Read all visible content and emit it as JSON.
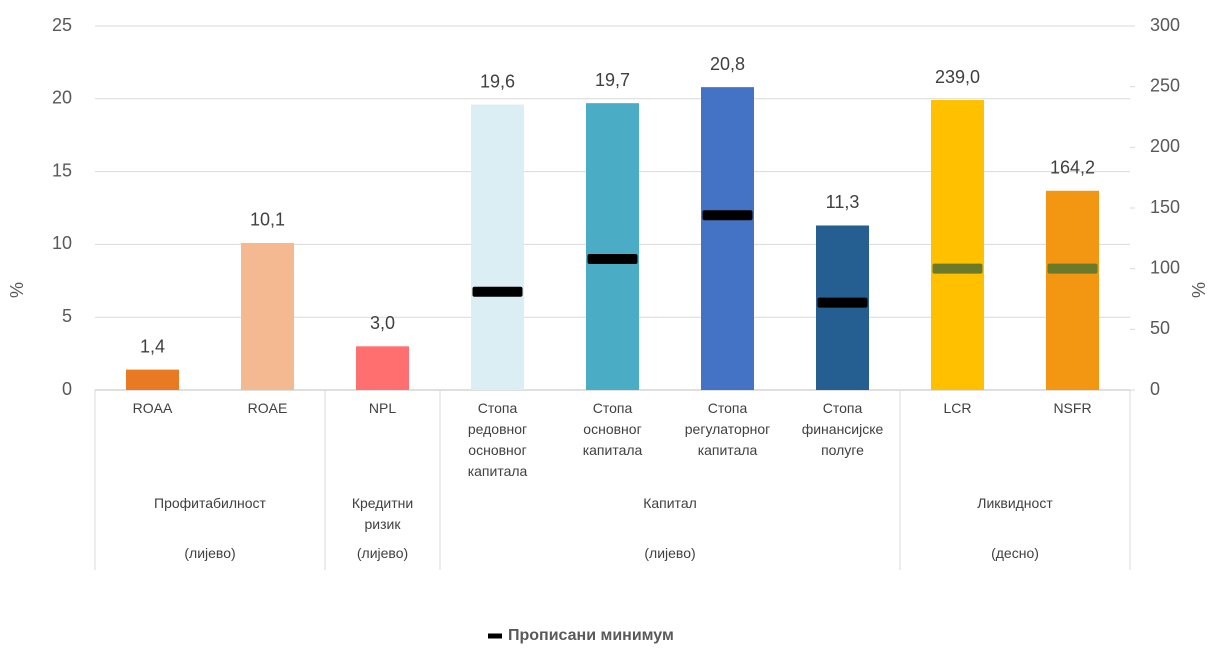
{
  "chart_data": {
    "type": "bar",
    "groups": [
      {
        "label": "Профитабилност",
        "note": "(лијево)",
        "categories": [
          "ROAA",
          "ROAE"
        ]
      },
      {
        "label": "Кредитни ризик",
        "note": "(лијево)",
        "categories": [
          "NPL"
        ]
      },
      {
        "label": "Капитал",
        "note": "(лијево)",
        "categories": [
          "Стопа редовног основног капитала",
          "Стопа основног капитала",
          "Стопа регулаторног капитала",
          "Стопа финансијске полуге"
        ]
      },
      {
        "label": "Ликвидност",
        "note": "(десно)",
        "categories": [
          "LCR",
          "NSFR"
        ]
      }
    ],
    "bars": {
      "values": [
        1.4,
        10.1,
        3.0,
        19.6,
        19.7,
        20.8,
        11.3,
        239.0,
        164.2
      ],
      "value_labels": [
        "1,4",
        "10,1",
        "3,0",
        "19,6",
        "19,7",
        "20,8",
        "11,3",
        "239,0",
        "164,2"
      ],
      "colors": [
        "#e97a23",
        "#f4b991",
        "#ff6f6f",
        "#daeef3",
        "#4bacc6",
        "#4472c4",
        "#255e91",
        "#ffc000",
        "#f39712"
      ],
      "axes": [
        "y",
        "y",
        "y",
        "y",
        "y",
        "y",
        "y",
        "y2",
        "y2"
      ]
    },
    "series": [
      {
        "name": "Прописани минимум",
        "color": "#000000",
        "values": [
          null,
          null,
          null,
          6.75,
          9,
          12,
          6,
          100,
          100
        ],
        "colors": [
          null,
          null,
          null,
          "#000000",
          "#000000",
          "#000000",
          "#000000",
          "#6b7a2a",
          "#6b7a2a"
        ],
        "axes": [
          "y",
          "y",
          "y",
          "y",
          "y",
          "y",
          "y",
          "y2",
          "y2"
        ]
      }
    ],
    "ylabel": "%",
    "y2label": "%",
    "ylim": [
      0,
      25
    ],
    "yticks": [
      0,
      5,
      10,
      15,
      20,
      25
    ],
    "y2lim": [
      0,
      300
    ],
    "y2ticks": [
      0,
      50,
      100,
      150,
      200,
      250,
      300
    ],
    "grid": true,
    "legend": "bottom"
  }
}
